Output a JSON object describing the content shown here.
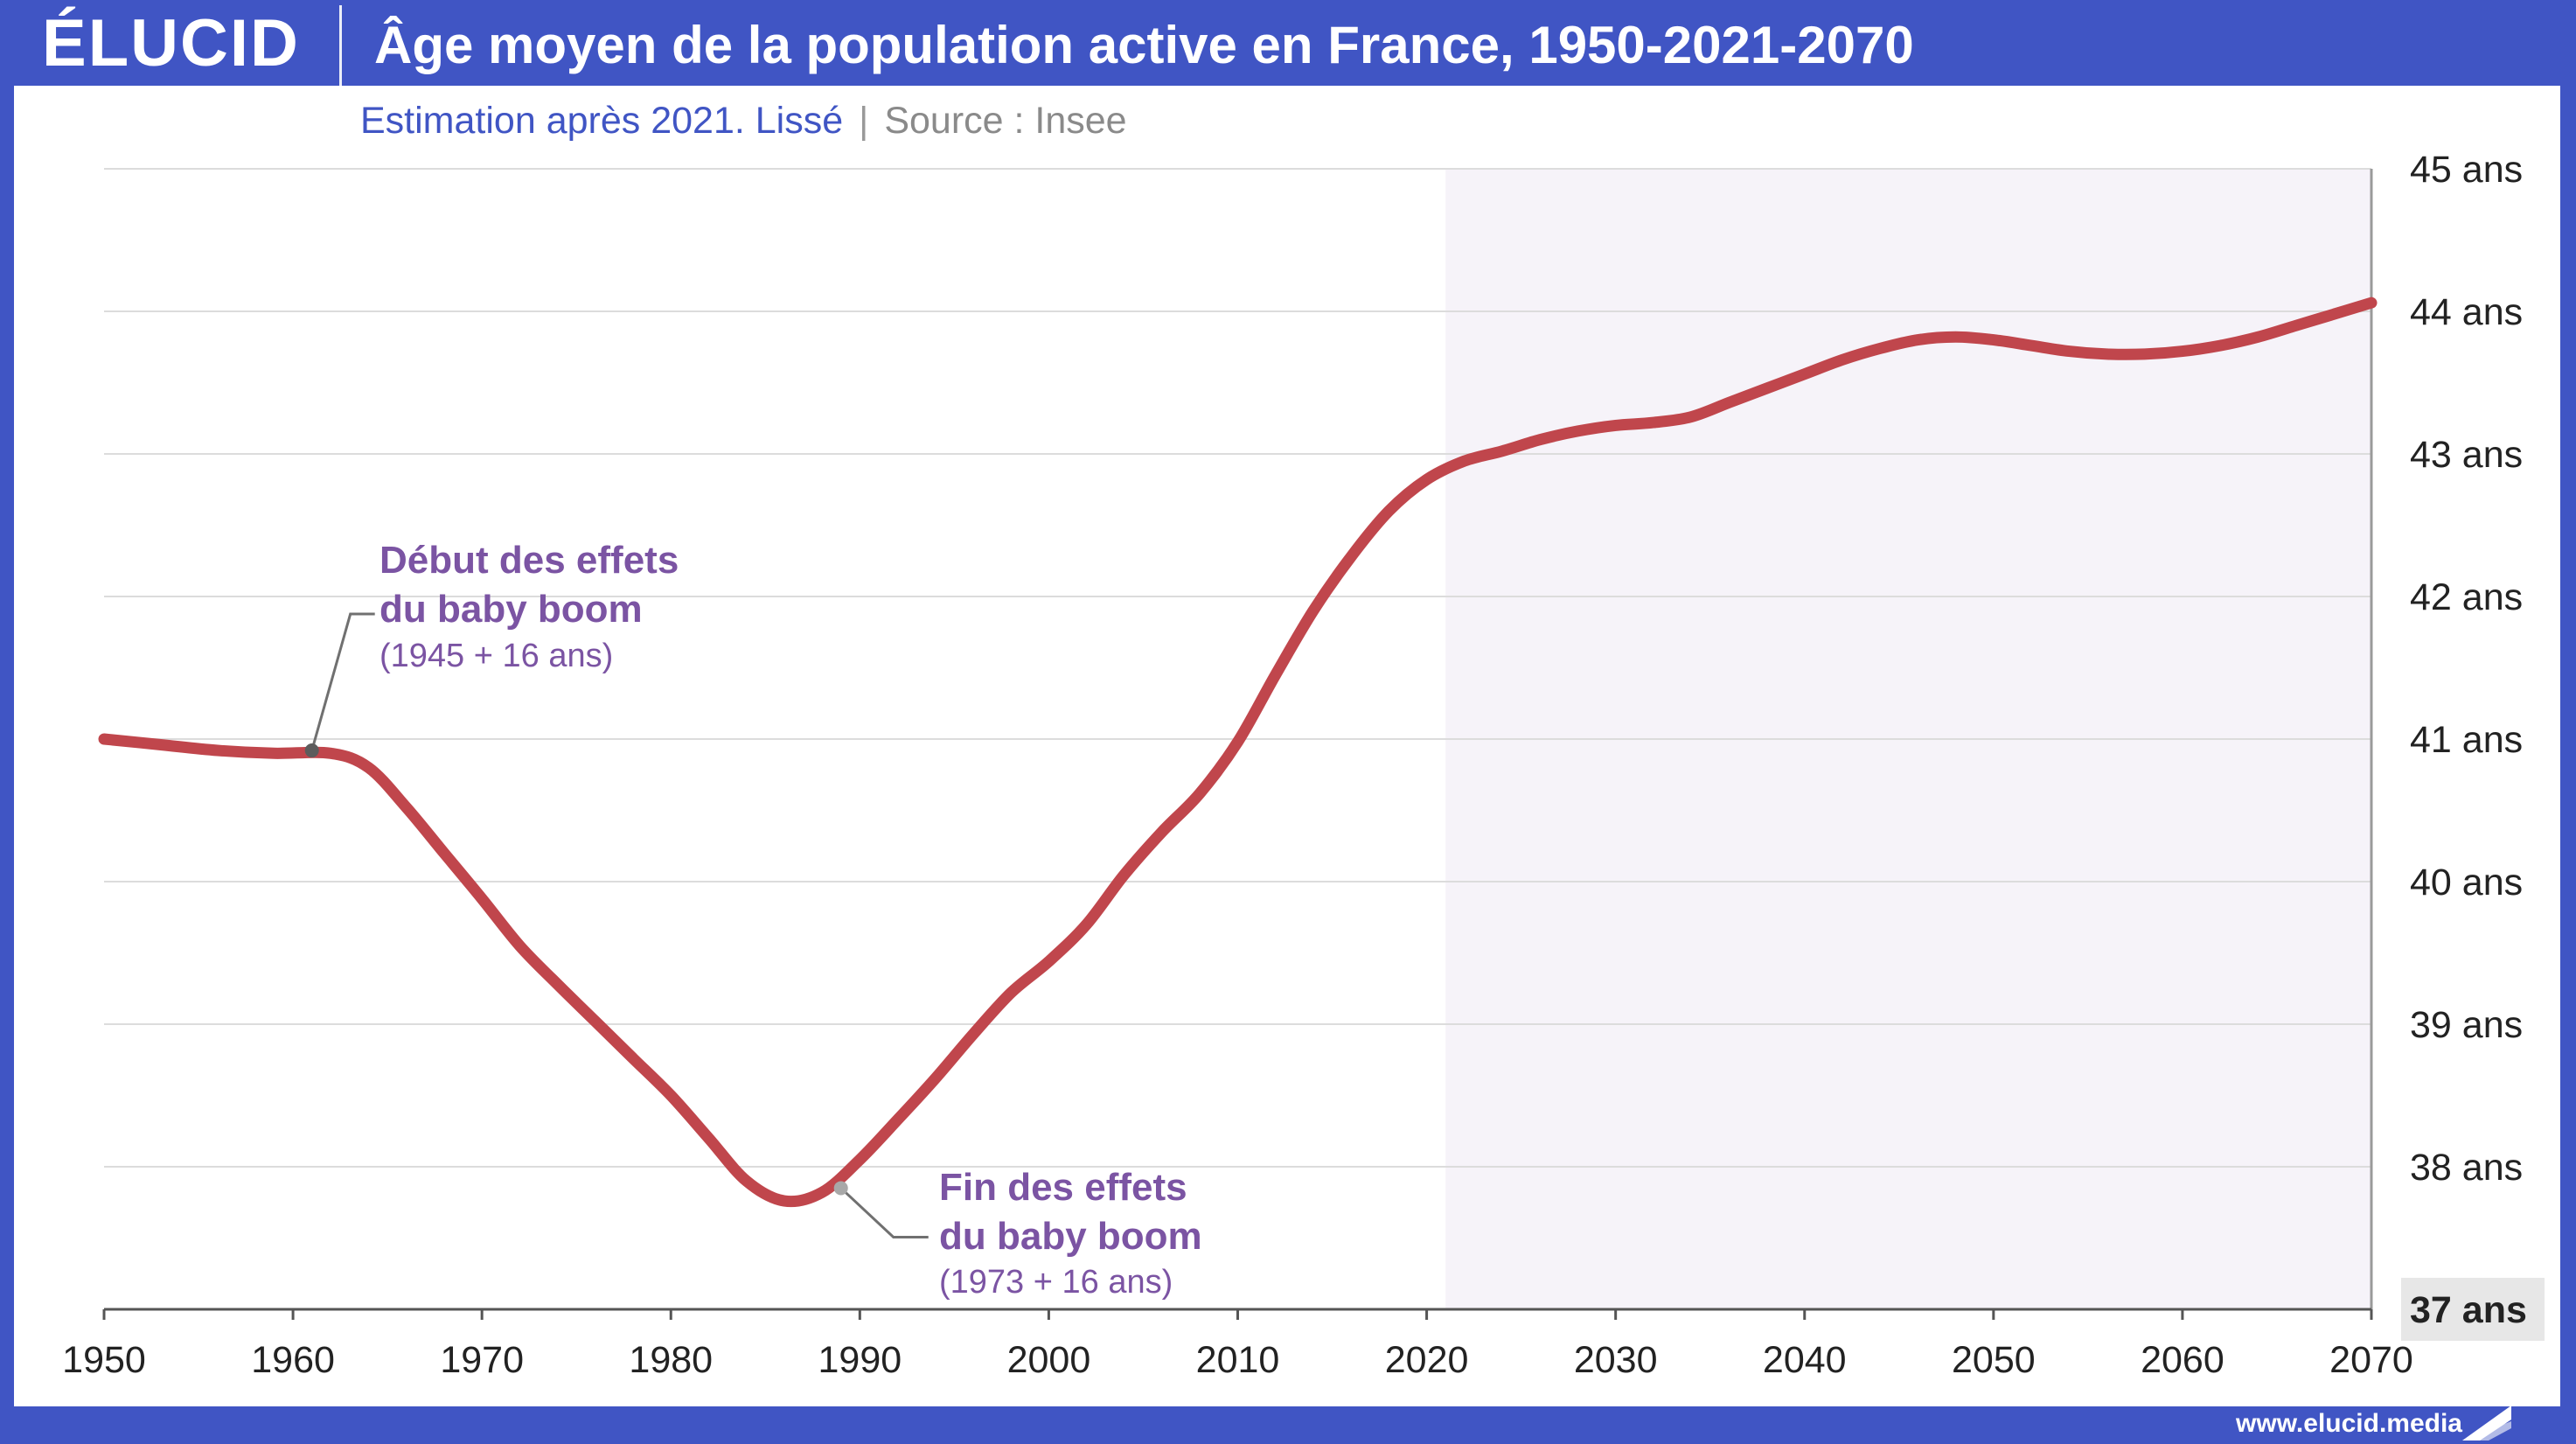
{
  "brand": {
    "logo": "ÉLUCID",
    "url": "www.elucid.media"
  },
  "header": {
    "title": "Âge moyen de la population active en France, 1950-2021-2070",
    "subtitle_note": "Estimation après 2021. Lissé",
    "separator": "|",
    "subtitle_source": "Source : Insee"
  },
  "colors": {
    "frame": "#4055c4",
    "line": "#c0464c",
    "annotation": "#7b54a3",
    "forecast_shade": "#f6f3f9"
  },
  "chart_data": {
    "type": "line",
    "title": "Âge moyen de la population active en France, 1950-2021-2070",
    "xlabel": "",
    "ylabel": "",
    "xlim": [
      1950,
      2070
    ],
    "ylim": [
      37,
      45
    ],
    "x_ticks": [
      "1950",
      "1960",
      "1970",
      "1980",
      "1990",
      "2000",
      "2010",
      "2020",
      "2030",
      "2040",
      "2050",
      "2060",
      "2070"
    ],
    "y_ticks": [
      "37 ans",
      "38 ans",
      "39 ans",
      "40 ans",
      "41 ans",
      "42 ans",
      "43 ans",
      "44 ans",
      "45 ans"
    ],
    "forecast_from": 2021,
    "grid": "horizontal",
    "series": [
      {
        "x": [
          1950,
          1953,
          1956,
          1959,
          1962,
          1964,
          1966,
          1968,
          1970,
          1972,
          1974,
          1976,
          1978,
          1980,
          1982,
          1984,
          1986,
          1988,
          1990,
          1992,
          1994,
          1996,
          1998,
          2000,
          2002,
          2004,
          2006,
          2008,
          2010,
          2012,
          2014,
          2016,
          2018,
          2020,
          2022,
          2024,
          2026,
          2028,
          2030,
          2032,
          2034,
          2036,
          2038,
          2040,
          2042,
          2044,
          2046,
          2048,
          2050,
          2052,
          2054,
          2056,
          2058,
          2060,
          2062,
          2064,
          2066,
          2068,
          2070
        ],
        "y": [
          41.0,
          40.96,
          40.92,
          40.9,
          40.9,
          40.8,
          40.52,
          40.2,
          39.88,
          39.55,
          39.28,
          39.02,
          38.76,
          38.5,
          38.2,
          37.9,
          37.76,
          37.82,
          38.05,
          38.33,
          38.62,
          38.93,
          39.22,
          39.44,
          39.7,
          40.05,
          40.35,
          40.62,
          40.98,
          41.45,
          41.9,
          42.28,
          42.6,
          42.82,
          42.95,
          43.02,
          43.1,
          43.16,
          43.2,
          43.22,
          43.26,
          43.36,
          43.46,
          43.56,
          43.66,
          43.74,
          43.8,
          43.82,
          43.8,
          43.76,
          43.72,
          43.7,
          43.7,
          43.72,
          43.76,
          43.82,
          43.9,
          43.98,
          44.06
        ]
      }
    ],
    "annotations": [
      {
        "title_line1": "Début des effets",
        "title_line2": "du baby boom",
        "sub": "(1945 + 16 ans)",
        "x": 1961,
        "y": 40.92
      },
      {
        "title_line1": "Fin des effets",
        "title_line2": "du baby boom",
        "sub": "(1973 + 16 ans)",
        "x": 1989,
        "y": 37.85
      }
    ]
  }
}
